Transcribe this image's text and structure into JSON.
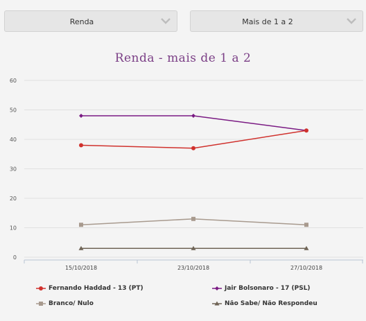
{
  "selects": [
    {
      "value": "Renda"
    },
    {
      "value": "Mais de 1 a 2"
    }
  ],
  "icons": {
    "dropdown": "chevron-down-icon"
  },
  "chart_data": {
    "type": "line",
    "title": "Renda - mais de 1 a 2",
    "categories": [
      "15/10/2018",
      "23/10/2018",
      "27/10/2018"
    ],
    "ylim": [
      0,
      60
    ],
    "yticks": [
      0,
      10,
      20,
      30,
      40,
      50,
      60
    ],
    "grid": true,
    "legend_position": "bottom",
    "series": [
      {
        "name": "Fernando Haddad - 13 (PT)",
        "values": [
          38,
          37,
          43
        ],
        "color": "#d0312d",
        "marker": "circle"
      },
      {
        "name": "Jair Bolsonaro - 17 (PSL)",
        "values": [
          48,
          48,
          43
        ],
        "color": "#7a1a83",
        "marker": "diamond"
      },
      {
        "name": "Branco/ Nulo",
        "values": [
          11,
          13,
          11
        ],
        "color": "#a89a8e",
        "marker": "square"
      },
      {
        "name": "Não Sabe/ Não Respondeu",
        "values": [
          3,
          3,
          3
        ],
        "color": "#6f6456",
        "marker": "triangle"
      }
    ]
  }
}
